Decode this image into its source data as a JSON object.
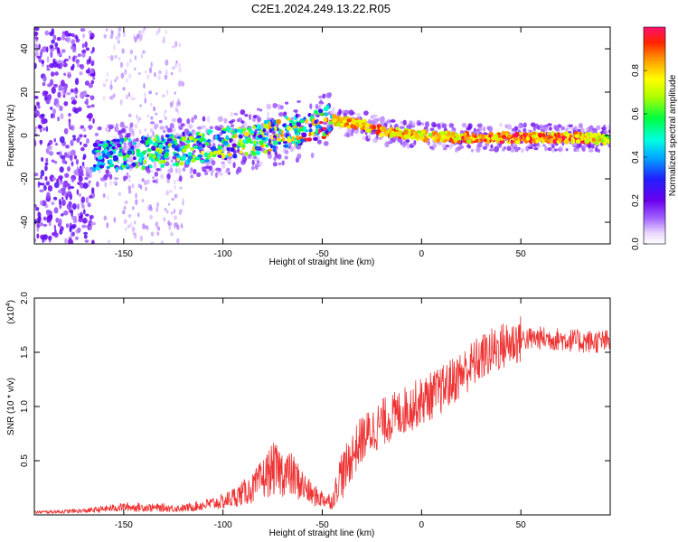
{
  "title": "C2E1.2024.249.13.22.R05",
  "chart_data": [
    {
      "type": "heatmap",
      "xlabel": "Height of straight line (km)",
      "ylabel": "Frequency (Hz)",
      "xlim": [
        -195,
        95
      ],
      "ylim": [
        -50,
        50
      ],
      "xticks": [
        "-150",
        "-100",
        "-50",
        "0",
        "50"
      ],
      "yticks": [
        "-40",
        "-20",
        "0",
        "20",
        "40"
      ],
      "colorbar": {
        "label": "Normalized spectral amplitude",
        "ticks": [
          "0.0",
          "0.2",
          "0.4",
          "0.6",
          "0.8"
        ],
        "range": [
          0,
          1
        ]
      },
      "ridge": {
        "x": [
          -165,
          -140,
          -120,
          -100,
          -80,
          -60,
          -45,
          -30,
          -20,
          -10,
          0,
          20,
          40,
          60,
          80,
          95
        ],
        "frequency": [
          -9,
          -8,
          -6,
          -4,
          -1,
          3,
          7,
          5,
          2,
          1,
          0,
          -1,
          -1,
          -1,
          -1,
          -2
        ],
        "amplitude": [
          0.15,
          0.3,
          0.35,
          0.4,
          0.45,
          0.5,
          0.9,
          0.95,
          0.95,
          0.95,
          0.9,
          0.95,
          1.0,
          1.0,
          1.0,
          0.8
        ]
      }
    },
    {
      "type": "line",
      "xlabel": "Height of straight line (km)",
      "ylabel": "SNR (10 * v/v)",
      "yscale_label": "(x10",
      "yscale_exp": "4",
      "yscale_close": ")",
      "xlim": [
        -195,
        95
      ],
      "ylim": [
        0,
        2.0
      ],
      "xticks": [
        "-150",
        "-100",
        "-50",
        "0",
        "50"
      ],
      "yticks": [
        "0.5",
        "1.0",
        "1.5",
        "2.0"
      ],
      "color": "#ee3333",
      "envelope": {
        "x": [
          -195,
          -170,
          -150,
          -120,
          -100,
          -85,
          -75,
          -65,
          -55,
          -45,
          -40,
          -35,
          -30,
          -20,
          -10,
          0,
          10,
          20,
          30,
          40,
          50,
          60,
          70,
          80,
          95
        ],
        "y": [
          0.02,
          0.03,
          0.06,
          0.05,
          0.1,
          0.2,
          0.35,
          0.3,
          0.15,
          0.1,
          0.35,
          0.55,
          0.7,
          0.85,
          0.95,
          1.05,
          1.15,
          1.3,
          1.45,
          1.55,
          1.62,
          1.63,
          1.62,
          1.6,
          1.6
        ]
      }
    }
  ]
}
